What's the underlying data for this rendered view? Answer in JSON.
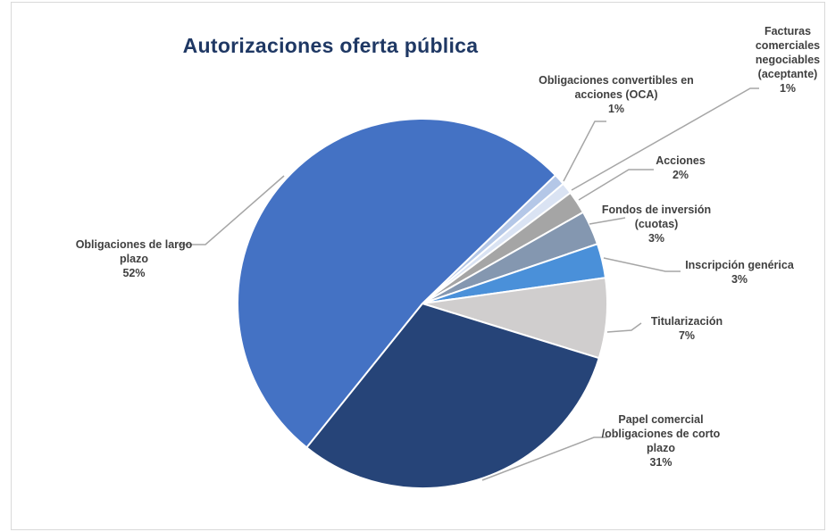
{
  "chart_data": {
    "type": "pie",
    "title": "Autorizaciones oferta pública",
    "categories": [
      "Obligaciones convertibles en acciones (OCA)",
      "Facturas comerciales negociables (aceptante)",
      "Acciones",
      "Fondos de inversión (cuotas)",
      "Inscripción genérica",
      "Titularización",
      "Papel comercial /obligaciones de corto plazo",
      "Obligaciones de largo plazo"
    ],
    "values": [
      1,
      1,
      2,
      3,
      3,
      7,
      31,
      52
    ],
    "value_labels": [
      "1%",
      "1%",
      "2%",
      "3%",
      "3%",
      "7%",
      "31%",
      "52%"
    ],
    "colors": [
      "#b4c7e7",
      "#dae3f3",
      "#a5a5a5",
      "#8497b0",
      "#4a90d9",
      "#d0cece",
      "#264478",
      "#4472c4"
    ]
  }
}
